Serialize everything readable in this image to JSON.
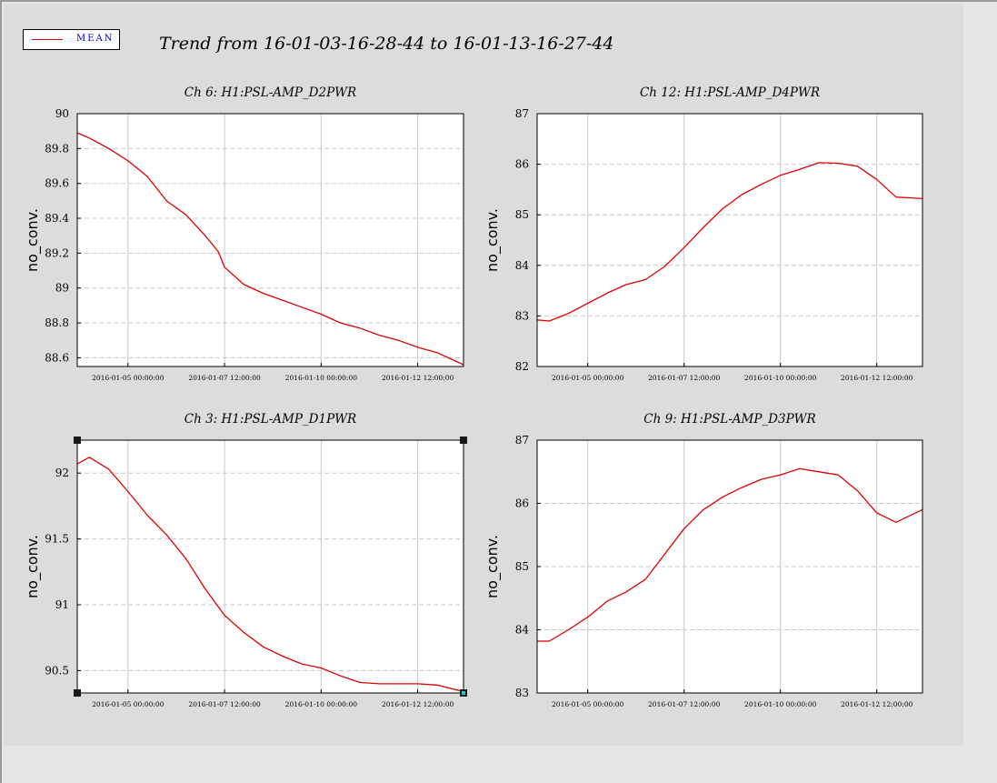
{
  "legend": {
    "label": "MEAN",
    "color": "#e00000"
  },
  "title": "Trend from 16-01-03-16-28-44 to 16-01-13-16-27-44",
  "chart_data": [
    {
      "type": "line",
      "title": "Ch 6: H1:PSL-AMP_D2PWR",
      "ylabel": "no_conv.",
      "xlim": [
        "2016-01-03 16:28:44",
        "2016-01-13 16:27:44"
      ],
      "ylim": [
        88.55,
        90
      ],
      "xticks": [
        "2016-01-05 00:00:00",
        "2016-01-07 12:00:00",
        "2016-01-10 00:00:00",
        "2016-01-12 12:00:00"
      ],
      "yticks": [
        88.6,
        88.8,
        89,
        89.2,
        89.4,
        89.6,
        89.8,
        90
      ],
      "ytick_labels": [
        "88.6",
        "88.8",
        "89",
        "89.2",
        "89.4",
        "89.6",
        "89.8",
        "90"
      ],
      "grid": true,
      "series": [
        {
          "name": "MEAN",
          "color": "#e00000",
          "x": [
            "2016-01-03 16:28:44",
            "2016-01-04 00:00:00",
            "2016-01-04 12:00:00",
            "2016-01-05 00:00:00",
            "2016-01-05 12:00:00",
            "2016-01-06 00:00:00",
            "2016-01-06 12:00:00",
            "2016-01-07 00:00:00",
            "2016-01-07 08:00:00",
            "2016-01-07 12:00:00",
            "2016-01-08 00:00:00",
            "2016-01-08 12:00:00",
            "2016-01-09 00:00:00",
            "2016-01-09 12:00:00",
            "2016-01-10 00:00:00",
            "2016-01-10 12:00:00",
            "2016-01-11 00:00:00",
            "2016-01-11 12:00:00",
            "2016-01-12 00:00:00",
            "2016-01-12 12:00:00",
            "2016-01-13 00:00:00",
            "2016-01-13 16:27:44"
          ],
          "y": [
            89.89,
            89.86,
            89.8,
            89.73,
            89.64,
            89.5,
            89.42,
            89.3,
            89.21,
            89.12,
            89.02,
            88.97,
            88.93,
            88.89,
            88.85,
            88.8,
            88.77,
            88.73,
            88.7,
            88.66,
            88.63,
            88.56
          ]
        }
      ]
    },
    {
      "type": "line",
      "title": "Ch 12: H1:PSL-AMP_D4PWR",
      "ylabel": "no_conv.",
      "xlim": [
        "2016-01-03 16:28:44",
        "2016-01-13 16:27:44"
      ],
      "ylim": [
        82,
        87
      ],
      "xticks": [
        "2016-01-05 00:00:00",
        "2016-01-07 12:00:00",
        "2016-01-10 00:00:00",
        "2016-01-12 12:00:00"
      ],
      "yticks": [
        82,
        83,
        84,
        85,
        86,
        87
      ],
      "ytick_labels": [
        "82",
        "83",
        "84",
        "85",
        "86",
        "87"
      ],
      "grid": true,
      "series": [
        {
          "name": "MEAN",
          "color": "#e00000",
          "x": [
            "2016-01-03 16:28:44",
            "2016-01-04 00:00:00",
            "2016-01-04 12:00:00",
            "2016-01-05 00:00:00",
            "2016-01-05 12:00:00",
            "2016-01-06 00:00:00",
            "2016-01-06 12:00:00",
            "2016-01-07 00:00:00",
            "2016-01-07 12:00:00",
            "2016-01-08 00:00:00",
            "2016-01-08 12:00:00",
            "2016-01-09 00:00:00",
            "2016-01-09 12:00:00",
            "2016-01-10 00:00:00",
            "2016-01-10 12:00:00",
            "2016-01-11 00:00:00",
            "2016-01-11 12:00:00",
            "2016-01-12 00:00:00",
            "2016-01-12 12:00:00",
            "2016-01-13 00:00:00",
            "2016-01-13 16:27:44"
          ],
          "y": [
            82.92,
            82.9,
            83.05,
            83.25,
            83.45,
            83.62,
            83.72,
            83.98,
            84.35,
            84.75,
            85.12,
            85.4,
            85.6,
            85.78,
            85.9,
            86.03,
            86.02,
            85.96,
            85.7,
            85.35,
            85.32
          ]
        }
      ]
    },
    {
      "type": "line",
      "title": "Ch 3: H1:PSL-AMP_D1PWR",
      "ylabel": "no_conv.",
      "xlim": [
        "2016-01-03 16:28:44",
        "2016-01-13 16:27:44"
      ],
      "ylim": [
        90.33,
        92.25
      ],
      "xticks": [
        "2016-01-05 00:00:00",
        "2016-01-07 12:00:00",
        "2016-01-10 00:00:00",
        "2016-01-12 12:00:00"
      ],
      "yticks": [
        90.5,
        91,
        91.5,
        92
      ],
      "ytick_labels": [
        "90.5",
        "91",
        "91.5",
        "92"
      ],
      "grid": true,
      "series": [
        {
          "name": "MEAN",
          "color": "#e00000",
          "x": [
            "2016-01-03 16:28:44",
            "2016-01-04 00:00:00",
            "2016-01-04 12:00:00",
            "2016-01-05 00:00:00",
            "2016-01-05 12:00:00",
            "2016-01-06 00:00:00",
            "2016-01-06 12:00:00",
            "2016-01-07 00:00:00",
            "2016-01-07 12:00:00",
            "2016-01-08 00:00:00",
            "2016-01-08 12:00:00",
            "2016-01-09 00:00:00",
            "2016-01-09 12:00:00",
            "2016-01-10 00:00:00",
            "2016-01-10 12:00:00",
            "2016-01-11 00:00:00",
            "2016-01-11 12:00:00",
            "2016-01-12 00:00:00",
            "2016-01-12 12:00:00",
            "2016-01-13 00:00:00",
            "2016-01-13 16:27:44"
          ],
          "y": [
            92.07,
            92.12,
            92.03,
            91.86,
            91.68,
            91.53,
            91.35,
            91.12,
            90.92,
            90.79,
            90.68,
            90.61,
            90.55,
            90.52,
            90.46,
            90.41,
            90.4,
            90.4,
            90.4,
            90.39,
            90.34
          ]
        }
      ]
    },
    {
      "type": "line",
      "title": "Ch 9: H1:PSL-AMP_D3PWR",
      "ylabel": "no_conv.",
      "xlim": [
        "2016-01-03 16:28:44",
        "2016-01-13 16:27:44"
      ],
      "ylim": [
        83,
        87
      ],
      "xticks": [
        "2016-01-05 00:00:00",
        "2016-01-07 12:00:00",
        "2016-01-10 00:00:00",
        "2016-01-12 12:00:00"
      ],
      "yticks": [
        83,
        84,
        85,
        86,
        87
      ],
      "ytick_labels": [
        "83",
        "84",
        "85",
        "86",
        "87"
      ],
      "grid": true,
      "series": [
        {
          "name": "MEAN",
          "color": "#e00000",
          "x": [
            "2016-01-03 16:28:44",
            "2016-01-04 00:00:00",
            "2016-01-04 12:00:00",
            "2016-01-05 00:00:00",
            "2016-01-05 12:00:00",
            "2016-01-06 00:00:00",
            "2016-01-06 12:00:00",
            "2016-01-07 00:00:00",
            "2016-01-07 12:00:00",
            "2016-01-08 00:00:00",
            "2016-01-08 12:00:00",
            "2016-01-09 00:00:00",
            "2016-01-09 12:00:00",
            "2016-01-10 00:00:00",
            "2016-01-10 12:00:00",
            "2016-01-11 00:00:00",
            "2016-01-11 12:00:00",
            "2016-01-12 00:00:00",
            "2016-01-12 12:00:00",
            "2016-01-13 00:00:00",
            "2016-01-13 16:27:44"
          ],
          "y": [
            83.82,
            83.82,
            84.0,
            84.2,
            84.45,
            84.6,
            84.8,
            85.2,
            85.6,
            85.9,
            86.1,
            86.25,
            86.38,
            86.45,
            86.55,
            86.5,
            86.45,
            86.2,
            85.85,
            85.7,
            85.9
          ]
        }
      ]
    }
  ]
}
